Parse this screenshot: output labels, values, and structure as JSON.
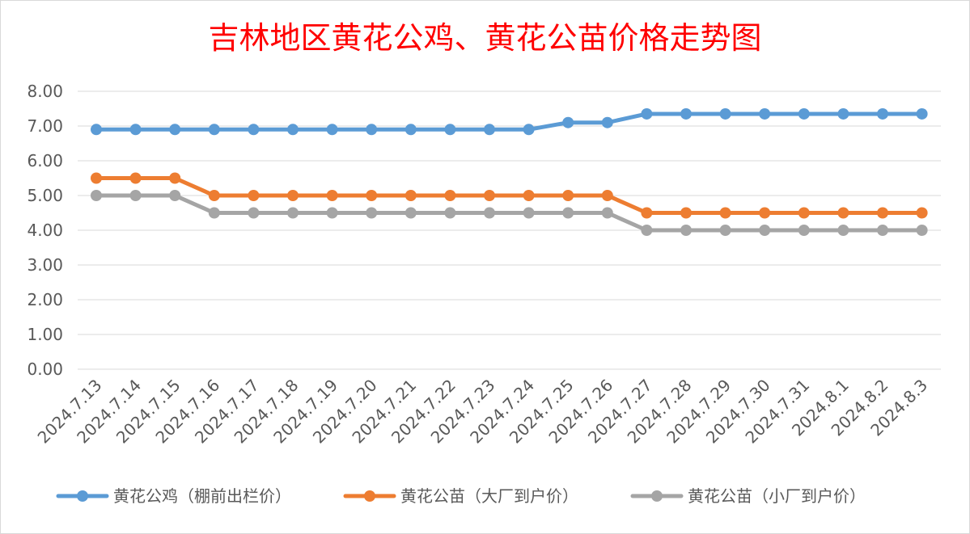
{
  "chart_data": {
    "type": "line",
    "title": "吉林地区黄花公鸡、黄花公苗价格走势图",
    "xlabel": "",
    "ylabel": "",
    "ylim": [
      0,
      8
    ],
    "yticks": [
      "0.00",
      "1.00",
      "2.00",
      "3.00",
      "4.00",
      "5.00",
      "6.00",
      "7.00",
      "8.00"
    ],
    "grid": true,
    "legend_position": "bottom",
    "categories": [
      "2024.7.13",
      "2024.7.14",
      "2024.7.15",
      "2024.7.16",
      "2024.7.17",
      "2024.7.18",
      "2024.7.19",
      "2024.7.20",
      "2024.7.21",
      "2024.7.22",
      "2024.7.23",
      "2024.7.24",
      "2024.7.25",
      "2024.7.26",
      "2024.7.27",
      "2024.7.28",
      "2024.7.29",
      "2024.7.30",
      "2024.7.31",
      "2024.8.1",
      "2024.8.2",
      "2024.8.3"
    ],
    "series": [
      {
        "name": "黄花公鸡（棚前出栏价）",
        "color": "#5b9bd5",
        "values": [
          6.9,
          6.9,
          6.9,
          6.9,
          6.9,
          6.9,
          6.9,
          6.9,
          6.9,
          6.9,
          6.9,
          6.9,
          7.1,
          7.1,
          7.35,
          7.35,
          7.35,
          7.35,
          7.35,
          7.35,
          7.35,
          7.35
        ]
      },
      {
        "name": "黄花公苗（大厂到户价）",
        "color": "#ed7d31",
        "values": [
          5.5,
          5.5,
          5.5,
          5.0,
          5.0,
          5.0,
          5.0,
          5.0,
          5.0,
          5.0,
          5.0,
          5.0,
          5.0,
          5.0,
          4.5,
          4.5,
          4.5,
          4.5,
          4.5,
          4.5,
          4.5,
          4.5
        ]
      },
      {
        "name": "黄花公苗（小厂到户价）",
        "color": "#a5a5a5",
        "values": [
          5.0,
          5.0,
          5.0,
          4.5,
          4.5,
          4.5,
          4.5,
          4.5,
          4.5,
          4.5,
          4.5,
          4.5,
          4.5,
          4.5,
          4.0,
          4.0,
          4.0,
          4.0,
          4.0,
          4.0,
          4.0,
          4.0
        ]
      }
    ]
  }
}
